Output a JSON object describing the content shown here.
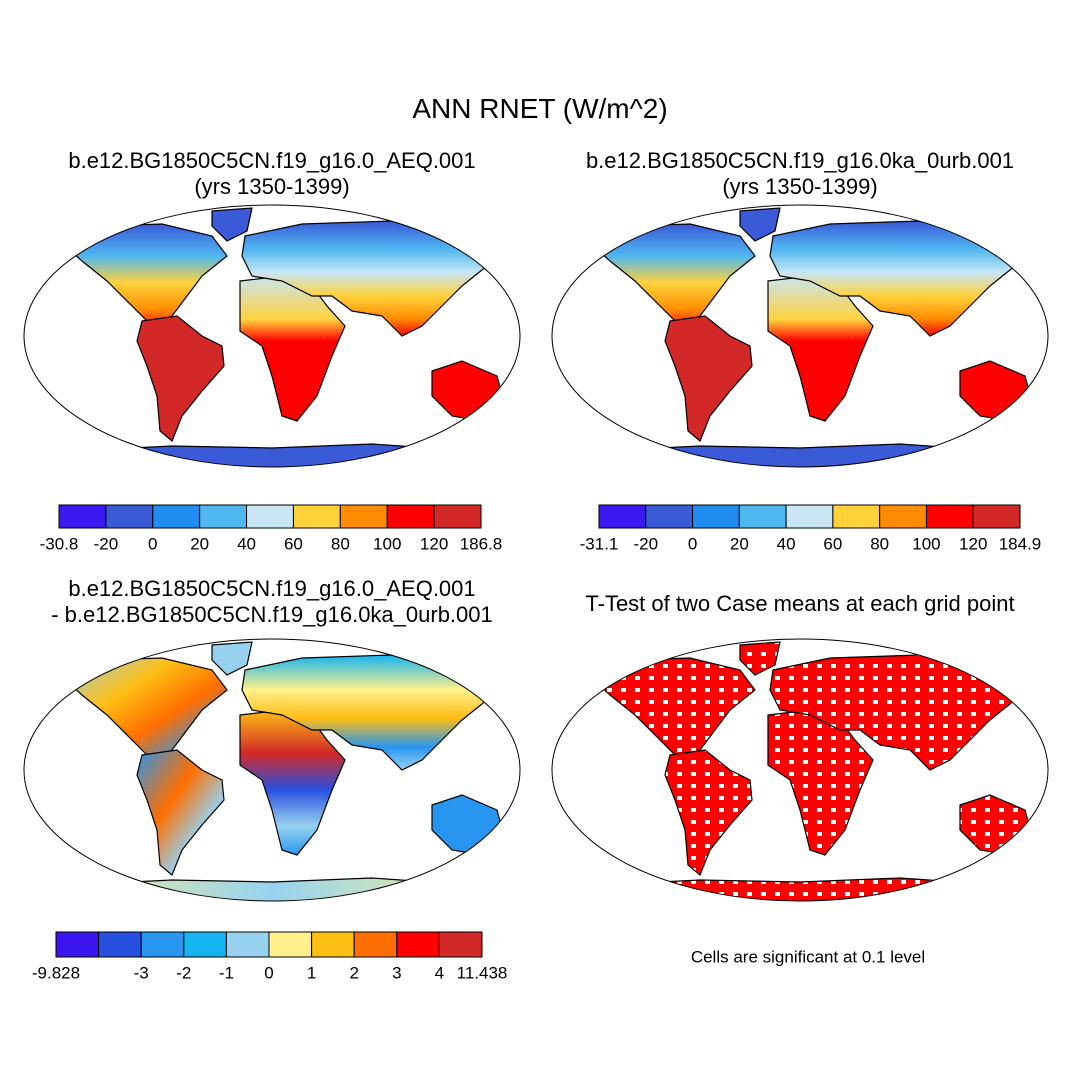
{
  "title": "ANN RNET (W/m^2)",
  "panels": [
    {
      "title": "b.e12.BG1850C5CN.f19_g16.0_AEQ.001",
      "subtitle": "(yrs 1350-1399)",
      "colorbar": {
        "colors": [
          "#3a1af0",
          "#3a5ad8",
          "#1e8cf0",
          "#50b8f0",
          "#c8e6f4",
          "#ffd23c",
          "#ff8c00",
          "#ff0000",
          "#d22828"
        ],
        "boundaries": [
          -30.8,
          -20,
          0,
          20,
          40,
          60,
          80,
          100,
          120,
          186.8
        ]
      }
    },
    {
      "title": "b.e12.BG1850C5CN.f19_g16.0ka_0urb.001",
      "subtitle": "(yrs 1350-1399)",
      "colorbar": {
        "colors": [
          "#3a1af0",
          "#3a5ad8",
          "#1e8cf0",
          "#50b8f0",
          "#c8e6f4",
          "#ffd23c",
          "#ff8c00",
          "#ff0000",
          "#d22828"
        ],
        "boundaries": [
          -31.1,
          -20,
          0,
          20,
          40,
          60,
          80,
          100,
          120,
          184.9
        ]
      }
    },
    {
      "title": "b.e12.BG1850C5CN.f19_g16.0_AEQ.001",
      "subtitle": "- b.e12.BG1850C5CN.f19_g16.0ka_0urb.001",
      "colorbar": {
        "colors": [
          "#3c14f0",
          "#2850e0",
          "#2896f0",
          "#14b4f0",
          "#96d2f0",
          "#fff08c",
          "#ffbe14",
          "#ff6e00",
          "#ff0000",
          "#d22828"
        ],
        "boundaries": [
          -9.828,
          null,
          -3,
          -2,
          -1,
          0,
          1,
          2,
          3,
          4,
          11.438
        ]
      }
    },
    {
      "title": "T-Test of two Case means at each grid point"
    }
  ],
  "note": "Cells are significant at 0.1 level"
}
